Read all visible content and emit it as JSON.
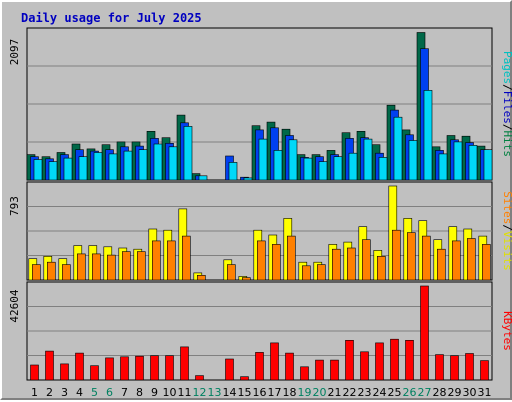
{
  "chart_data": {
    "type": "bar",
    "title": "Daily usage for July 2025",
    "categories": [
      "1",
      "2",
      "3",
      "4",
      "5",
      "6",
      "7",
      "8",
      "9",
      "10",
      "11",
      "12",
      "13",
      "14",
      "15",
      "16",
      "17",
      "18",
      "19",
      "20",
      "21",
      "22",
      "23",
      "24",
      "25",
      "26",
      "27",
      "28",
      "29",
      "30",
      "31"
    ],
    "weekend_days": [
      "5",
      "6",
      "12",
      "13",
      "19",
      "20",
      "26",
      "27"
    ],
    "panels": [
      {
        "name": "pages-files-hits",
        "max_label": "2097",
        "ylim": [
          0,
          2097
        ],
        "axis_labels": [
          {
            "text": "Pages",
            "color": "#00c0c0"
          },
          {
            "text": "Files",
            "color": "#0000c0"
          },
          {
            "text": "Hits",
            "color": "#008040"
          }
        ],
        "series": [
          {
            "name": "Hits",
            "color": "#006848",
            "values": [
              360,
              330,
              390,
              510,
              440,
              500,
              540,
              540,
              690,
              600,
              920,
              90,
              0,
              0,
              0,
              770,
              820,
              720,
              360,
              360,
              420,
              670,
              690,
              500,
              1060,
              710,
              2090,
              470,
              630,
              620,
              480
            ]
          },
          {
            "name": "Files",
            "color": "#0040f0",
            "values": [
              330,
              300,
              360,
              430,
              410,
              430,
              470,
              480,
              590,
              520,
              810,
              60,
              0,
              340,
              40,
              710,
              740,
              630,
              320,
              330,
              360,
              590,
              600,
              380,
              990,
              640,
              1860,
              420,
              570,
              530,
              430
            ]
          },
          {
            "name": "Pages",
            "color": "#00d8f8",
            "values": [
              290,
              260,
              310,
              330,
              390,
              370,
              410,
              430,
              510,
              470,
              760,
              60,
              0,
              250,
              30,
              580,
              420,
              570,
              310,
              260,
              330,
              380,
              580,
              320,
              890,
              560,
              1270,
              370,
              540,
              490,
              430
            ]
          }
        ]
      },
      {
        "name": "sites-visits",
        "max_label": "793",
        "ylim": [
          0,
          793
        ],
        "axis_labels": [
          {
            "text": "Sites",
            "color": "#ff8000"
          },
          {
            "text": "Visits",
            "color": "#e0e000"
          }
        ],
        "series": [
          {
            "name": "Visits",
            "color": "#ffff00",
            "values": [
              180,
              200,
              180,
              290,
              290,
              280,
              270,
              260,
              430,
              420,
              600,
              60,
              0,
              170,
              30,
              420,
              380,
              520,
              150,
              150,
              300,
              320,
              450,
              250,
              793,
              520,
              500,
              340,
              450,
              430,
              370
            ]
          },
          {
            "name": "Sites",
            "color": "#ff8000",
            "values": [
              130,
              150,
              130,
              220,
              220,
              210,
              240,
              240,
              330,
              330,
              370,
              40,
              0,
              130,
              20,
              330,
              300,
              370,
              120,
              130,
              260,
              270,
              340,
              200,
              420,
              400,
              370,
              260,
              330,
              350,
              300
            ]
          }
        ]
      },
      {
        "name": "kbytes",
        "max_label": "42604",
        "ylim": [
          0,
          42604
        ],
        "axis_labels": [
          {
            "text": "KBytes",
            "color": "#ff0000"
          }
        ],
        "series": [
          {
            "name": "KBytes",
            "color": "#ff0000",
            "values": [
              6800,
              13100,
              7300,
              12200,
              6500,
              10000,
              10500,
              10800,
              11000,
              11000,
              15000,
              2000,
              0,
              9500,
              1500,
              12500,
              16800,
              12200,
              6000,
              9000,
              9000,
              18000,
              12800,
              16800,
              18500,
              18000,
              42604,
              11500,
              11000,
              12000,
              8800
            ]
          }
        ]
      }
    ]
  }
}
